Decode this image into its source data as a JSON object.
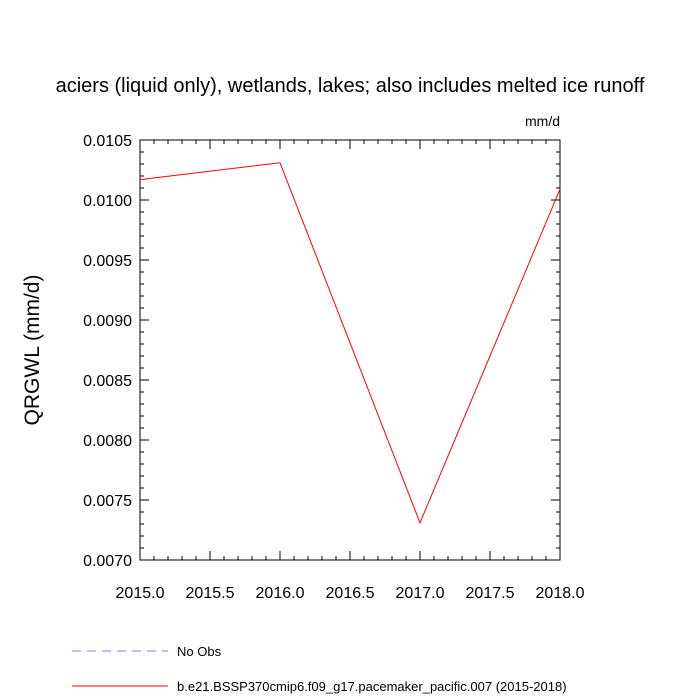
{
  "chart_data": {
    "type": "line",
    "title": "aciers (liquid only), wetlands, lakes; also includes melted ice runoff",
    "units": "mm/d",
    "ylabel": "QRGWL  (mm/d)",
    "xlabel": "",
    "xlim": [
      2015.0,
      2018.0
    ],
    "ylim": [
      0.007,
      0.0105
    ],
    "x_ticks": [
      "2015.0",
      "2015.5",
      "2016.0",
      "2016.5",
      "2017.0",
      "2017.5",
      "2018.0"
    ],
    "y_ticks": [
      "0.0070",
      "0.0075",
      "0.0080",
      "0.0085",
      "0.0090",
      "0.0095",
      "0.0100",
      "0.0105"
    ],
    "series": [
      {
        "name": "b.e21.BSSP370cmip6.f09_g17.pacemaker_pacific.007 (2015-2018)",
        "color": "#ff0000",
        "x": [
          2015.0,
          2016.0,
          2017.0,
          2018.0
        ],
        "y": [
          0.01017,
          0.01031,
          0.00731,
          0.01009
        ]
      }
    ],
    "legend": {
      "placement": "bottom-left",
      "entries": [
        {
          "label": "No Obs",
          "color": "#7f7fff",
          "style": "dashed"
        },
        {
          "label": "b.e21.BSSP370cmip6.f09_g17.pacemaker_pacific.007 (2015-2018)",
          "color": "#ff0000",
          "style": "solid"
        }
      ]
    }
  }
}
